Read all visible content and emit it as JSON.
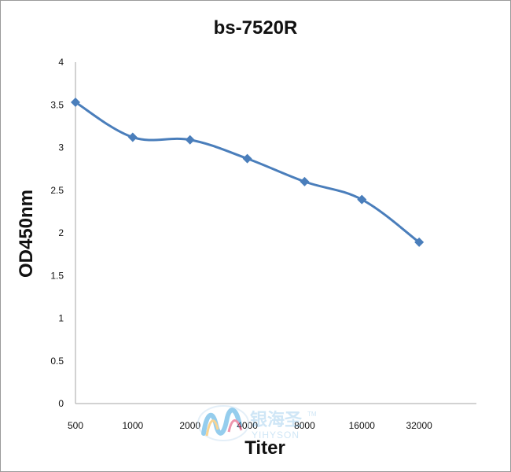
{
  "chart_data": {
    "type": "line",
    "title": "bs-7520R",
    "xlabel": "Titer",
    "ylabel": "OD450nm",
    "categories": [
      "500",
      "1000",
      "2000",
      "4000",
      "8000",
      "16000",
      "32000"
    ],
    "series": [
      {
        "values": [
          3.53,
          3.12,
          3.09,
          2.87,
          2.6,
          2.39,
          1.89
        ],
        "color": "#4a7ebb"
      }
    ],
    "ylim": [
      0,
      4
    ],
    "yticks": [
      "0",
      "0.5",
      "1",
      "1.5",
      "2",
      "2.5",
      "3",
      "3.5",
      "4"
    ],
    "grid": false,
    "marker": "diamond",
    "smooth": true
  },
  "watermark": {
    "chinese": "银海圣",
    "english": "YIHYSON",
    "trademark": "TM"
  }
}
